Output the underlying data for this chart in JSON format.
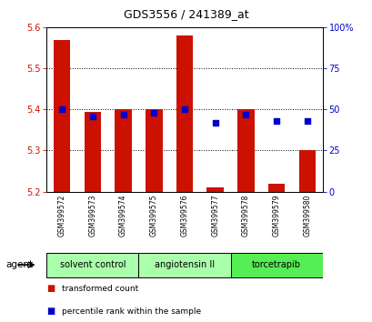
{
  "title": "GDS3556 / 241389_at",
  "samples": [
    "GSM399572",
    "GSM399573",
    "GSM399574",
    "GSM399575",
    "GSM399576",
    "GSM399577",
    "GSM399578",
    "GSM399579",
    "GSM399580"
  ],
  "bar_values": [
    5.57,
    5.395,
    5.4,
    5.4,
    5.58,
    5.21,
    5.4,
    5.22,
    5.3
  ],
  "bar_bottom": 5.2,
  "percentile_values": [
    50,
    46,
    47,
    48,
    50,
    42,
    47,
    43,
    43
  ],
  "bar_color": "#cc1100",
  "percentile_color": "#0000cc",
  "ylim_left": [
    5.2,
    5.6
  ],
  "ylim_right": [
    0,
    100
  ],
  "yticks_left": [
    5.2,
    5.3,
    5.4,
    5.5,
    5.6
  ],
  "yticks_right": [
    0,
    25,
    50,
    75,
    100
  ],
  "bar_width": 0.55,
  "tick_color_left": "#cc1100",
  "tick_color_right": "#0000cc",
  "background_color": "#ffffff",
  "group_defs": [
    {
      "label": "solvent control",
      "indices": [
        0,
        1,
        2
      ],
      "color": "#aaffaa"
    },
    {
      "label": "angiotensin II",
      "indices": [
        3,
        4,
        5
      ],
      "color": "#aaffaa"
    },
    {
      "label": "torcetrapib",
      "indices": [
        6,
        7,
        8
      ],
      "color": "#55ee55"
    }
  ],
  "agent_label": "agent",
  "legend_items": [
    {
      "label": "transformed count",
      "color": "#cc1100"
    },
    {
      "label": "percentile rank within the sample",
      "color": "#0000cc"
    }
  ],
  "sample_bg_color": "#d0d0d0"
}
